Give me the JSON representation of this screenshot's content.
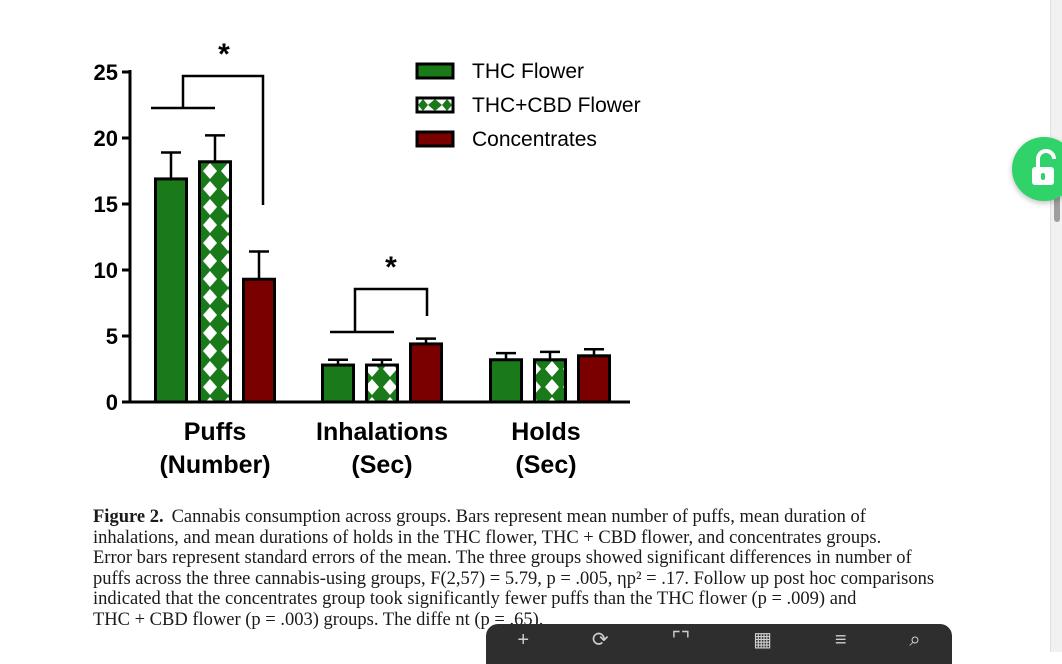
{
  "chart_data": {
    "type": "bar",
    "categories": [
      "Puffs\n(Number)",
      "Inhalations\n(Sec)",
      "Holds\n(Sec)"
    ],
    "series": [
      {
        "name": "THC Flower",
        "values": [
          16.9,
          2.8,
          3.2
        ],
        "errors": [
          2.0,
          0.4,
          0.5
        ],
        "color": "#1a7a1a",
        "pattern": "solid"
      },
      {
        "name": "THC+CBD Flower",
        "values": [
          18.2,
          2.8,
          3.2
        ],
        "errors": [
          2.0,
          0.4,
          0.6
        ],
        "color": "#1a7a1a",
        "pattern": "diamond"
      },
      {
        "name": "Concentrates",
        "values": [
          9.3,
          4.4,
          3.5
        ],
        "errors": [
          2.1,
          0.4,
          0.5
        ],
        "color": "#7a0000",
        "pattern": "solid"
      }
    ],
    "yticks": [
      "0",
      "5",
      "10",
      "15",
      "20",
      "25"
    ],
    "ylim": [
      0,
      25
    ],
    "significance": [
      {
        "category": 0,
        "label": "*"
      },
      {
        "category": 1,
        "label": "*"
      }
    ],
    "legend_position": "top-right"
  },
  "caption": {
    "label": "Figure 2.",
    "lines": [
      "Cannabis consumption across groups. Bars represent mean number of puffs, mean duration of",
      "inhalations, and mean durations of holds in the THC flower, THC + CBD flower, and concentrates groups.",
      "Error bars represent standard errors of the mean. The three groups showed significant differences in number of",
      "puffs across the three cannabis-using groups, F(2,57) = 5.79, p = .005, ηp² = .17. Follow up post hoc comparisons",
      "indicated that the concentrates group took significantly fewer puffs than the THC flower (p = .009) and",
      "THC + CBD flower (p = .003) groups. The diffe                                                                          nt (p = .65)."
    ]
  },
  "overlay": {
    "unlock_icon": "unlock-icon",
    "toolbar_icons": [
      "plus-icon",
      "rotate-icon",
      "crop-icon",
      "grid-icon",
      "menu-icon",
      "search-icon"
    ],
    "toolbar_glyphs": [
      "+",
      "⟳",
      "⌜⌝",
      "▦",
      "≡",
      "⌕"
    ]
  }
}
